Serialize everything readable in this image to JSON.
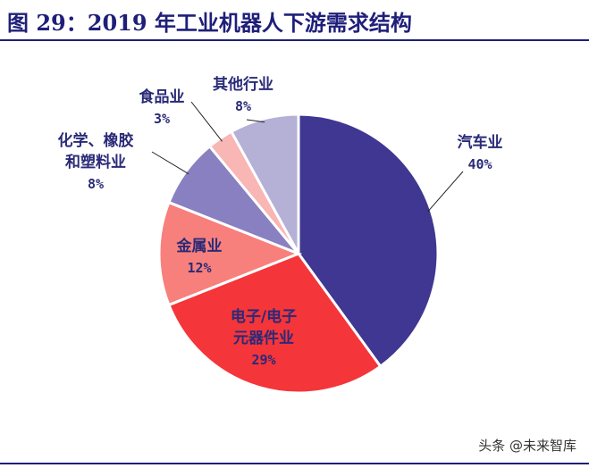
{
  "title": "图 29：2019 年工业机器人下游需求结构",
  "watermark": "头条 @未来智库",
  "chart_data": {
    "type": "pie",
    "start_angle_deg": 0,
    "direction": "clockwise",
    "slices": [
      {
        "name": "汽车业",
        "value": 40,
        "label": "40%",
        "color": "#3f3791"
      },
      {
        "name": "电子/电子元器件业",
        "value": 29,
        "label": "29%",
        "color": "#f4353a"
      },
      {
        "name": "金属业",
        "value": 12,
        "label": "12%",
        "color": "#f7807c"
      },
      {
        "name": "化学、橡胶和塑料业",
        "value": 8,
        "label": "8%",
        "color": "#8880c0"
      },
      {
        "name": "食品业",
        "value": 3,
        "label": "3%",
        "color": "#f8b6b4"
      },
      {
        "name": "其他行业",
        "value": 8,
        "label": "8%",
        "color": "#b4b0d6"
      }
    ],
    "label_lines": {
      "auto": [
        "汽车业",
        "40%"
      ],
      "elec": [
        "电子/电子",
        "元器件业",
        "29%"
      ],
      "metal": [
        "金属业",
        "12%"
      ],
      "chem": [
        "化学、橡胶",
        "和塑料业",
        "8%"
      ],
      "food": [
        "食品业",
        "3%"
      ],
      "other": [
        "其他行业",
        "8%"
      ]
    }
  }
}
